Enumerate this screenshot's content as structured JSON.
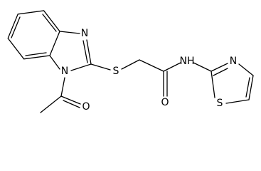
{
  "atoms": [
    "N",
    "N",
    "S",
    "O",
    "O",
    "NH",
    "N",
    "S"
  ]
}
